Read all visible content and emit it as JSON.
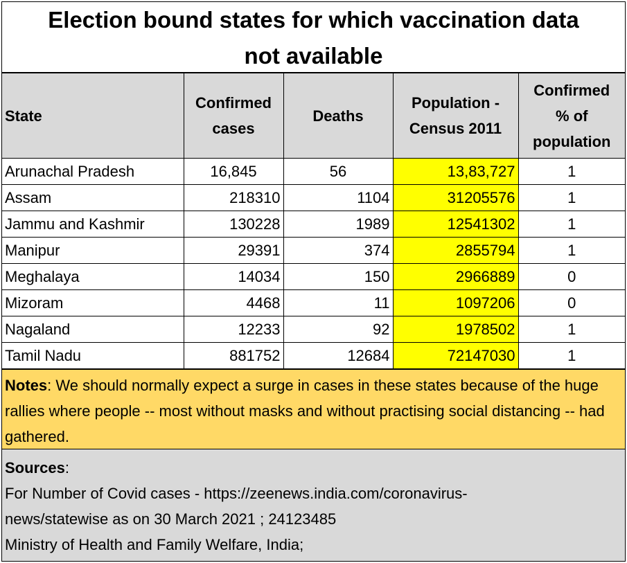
{
  "title": {
    "line1": "Election bound states for which vaccination data",
    "line2": "not available"
  },
  "table": {
    "headers": {
      "state": "State",
      "confirmed_line1": "Confirmed",
      "confirmed_line2": "cases",
      "deaths": "Deaths",
      "population_line1": "Population -",
      "population_line2": "Census 2011",
      "percent_line1": "Confirmed",
      "percent_line2": "% of",
      "percent_line3": "population"
    },
    "rows": [
      {
        "state": "Arunachal Pradesh",
        "confirmed": "16,845",
        "deaths": "56",
        "population": "13,83,727",
        "percent": "1"
      },
      {
        "state": "Assam",
        "confirmed": "218310",
        "deaths": "1104",
        "population": "31205576",
        "percent": "1"
      },
      {
        "state": "Jammu and Kashmir",
        "confirmed": "130228",
        "deaths": "1989",
        "population": "12541302",
        "percent": "1"
      },
      {
        "state": "Manipur",
        "confirmed": "29391",
        "deaths": "374",
        "population": "2855794",
        "percent": "1"
      },
      {
        "state": "Meghalaya",
        "confirmed": "14034",
        "deaths": "150",
        "population": "2966889",
        "percent": "0"
      },
      {
        "state": "Mizoram",
        "confirmed": "4468",
        "deaths": "11",
        "population": "1097206",
        "percent": "0"
      },
      {
        "state": "Nagaland",
        "confirmed": "12233",
        "deaths": "92",
        "population": "1978502",
        "percent": "1"
      },
      {
        "state": "Tamil Nadu",
        "confirmed": "881752",
        "deaths": "12684",
        "population": "72147030",
        "percent": "1"
      }
    ]
  },
  "notes": {
    "label": "Notes",
    "text": ":  We should normally expect a surge in cases in these states because of the huge rallies where people -- most without masks and without practising social distancing -- had gathered."
  },
  "sources": {
    "label": "Sources",
    "colon": ":",
    "line1": "For Number of Covid cases - https://zeenews.india.com/coronavirus-",
    "line2": "news/statewise as on 30 March 2021 ; 24123485",
    "line3": "Ministry of Health and Family Welfare, India;"
  },
  "colors": {
    "header_bg": "#d9d9d9",
    "population_highlight": "#ffff00",
    "notes_bg": "#ffd966",
    "sources_bg": "#d9d9d9"
  }
}
